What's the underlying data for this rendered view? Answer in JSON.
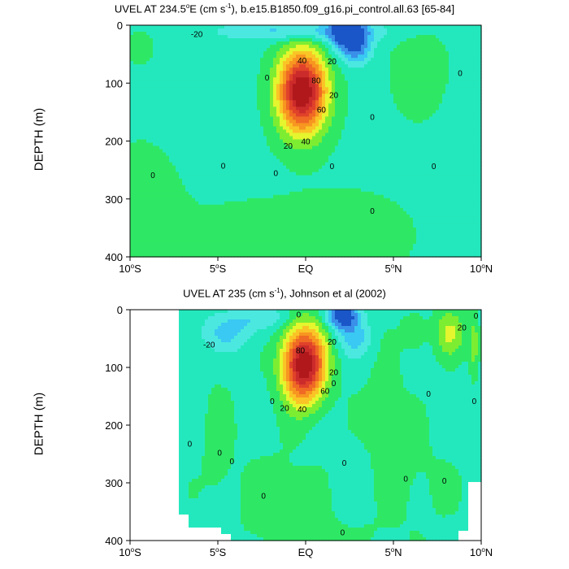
{
  "chart_data": [
    {
      "type": "contour",
      "title": "UVEL AT 234.5°E (cm s⁻¹), b.e15.B1850.f09_g16.pi_control.all.63 [65-84]",
      "title_parts": {
        "pre": "UVEL AT 234.5",
        "sup1": "o",
        "mid": "E (cm s",
        "sup2": "-1",
        "post": "), b.e15.B1850.f09_g16.pi_control.all.63 [65-84]"
      },
      "ylabel": "DEPTH (m)",
      "xlabel": "",
      "xlim": [
        -10,
        10
      ],
      "ylim": [
        400,
        0
      ],
      "x_ticks": [
        {
          "value": -10,
          "num": "10",
          "sup": "o",
          "suffix": "S"
        },
        {
          "value": -5,
          "num": "5",
          "sup": "o",
          "suffix": "S"
        },
        {
          "value": 0,
          "num": "EQ",
          "sup": "",
          "suffix": ""
        },
        {
          "value": 5,
          "num": "5",
          "sup": "o",
          "suffix": "N"
        },
        {
          "value": 10,
          "num": "10",
          "sup": "o",
          "suffix": "N"
        }
      ],
      "y_ticks": [
        0,
        100,
        200,
        300,
        400
      ],
      "contour_labels": [
        {
          "text": "-20",
          "x": -6.2,
          "y": 15
        },
        {
          "text": "40",
          "x": -0.2,
          "y": 60
        },
        {
          "text": "80",
          "x": 0.6,
          "y": 95
        },
        {
          "text": "20",
          "x": 1.5,
          "y": 62
        },
        {
          "text": "20",
          "x": 1.6,
          "y": 120
        },
        {
          "text": "60",
          "x": 0.9,
          "y": 145
        },
        {
          "text": "40",
          "x": 0.0,
          "y": 200
        },
        {
          "text": "20",
          "x": -1.0,
          "y": 208
        },
        {
          "text": "0",
          "x": -2.2,
          "y": 90
        },
        {
          "text": "0",
          "x": 3.8,
          "y": 158
        },
        {
          "text": "0",
          "x": 8.8,
          "y": 82
        },
        {
          "text": "0",
          "x": -8.7,
          "y": 258
        },
        {
          "text": "0",
          "x": -4.7,
          "y": 242
        },
        {
          "text": "0",
          "x": -1.7,
          "y": 255
        },
        {
          "text": "0",
          "x": 1.5,
          "y": 243
        },
        {
          "text": "0",
          "x": 3.8,
          "y": 320
        },
        {
          "text": "0",
          "x": 7.3,
          "y": 243
        }
      ]
    },
    {
      "type": "contour",
      "title": "UVEL AT 235 (cm s⁻¹), Johnson et al (2002)",
      "title_parts": {
        "pre": "UVEL AT 235 (cm s",
        "sup1": "-1",
        "mid": "), Johnson et al (2002)",
        "sup2": "",
        "post": ""
      },
      "ylabel": "DEPTH (m)",
      "xlabel": "",
      "xlim": [
        -10,
        10
      ],
      "ylim": [
        400,
        0
      ],
      "x_ticks": [
        {
          "value": -10,
          "num": "10",
          "sup": "o",
          "suffix": "S"
        },
        {
          "value": -5,
          "num": "5",
          "sup": "o",
          "suffix": "S"
        },
        {
          "value": 0,
          "num": "EQ",
          "sup": "",
          "suffix": ""
        },
        {
          "value": 5,
          "num": "5",
          "sup": "o",
          "suffix": "N"
        },
        {
          "value": 10,
          "num": "10",
          "sup": "o",
          "suffix": "N"
        }
      ],
      "y_ticks": [
        0,
        100,
        200,
        300,
        400
      ],
      "contour_labels": [
        {
          "text": "-20",
          "x": -5.5,
          "y": 60
        },
        {
          "text": "0",
          "x": -0.4,
          "y": 8
        },
        {
          "text": "20",
          "x": 1.5,
          "y": 55
        },
        {
          "text": "80",
          "x": -0.3,
          "y": 70
        },
        {
          "text": "20",
          "x": 1.6,
          "y": 108
        },
        {
          "text": "60",
          "x": 1.1,
          "y": 140
        },
        {
          "text": "40",
          "x": -0.2,
          "y": 172
        },
        {
          "text": "20",
          "x": -1.2,
          "y": 170
        },
        {
          "text": "0",
          "x": 1.6,
          "y": 127
        },
        {
          "text": "0",
          "x": -1.9,
          "y": 158
        },
        {
          "text": "0",
          "x": 7.0,
          "y": 145
        },
        {
          "text": "0",
          "x": 9.6,
          "y": 158
        },
        {
          "text": "20",
          "x": 8.9,
          "y": 30
        },
        {
          "text": "0",
          "x": 9.7,
          "y": 10
        },
        {
          "text": "0",
          "x": -6.6,
          "y": 232
        },
        {
          "text": "0",
          "x": -4.9,
          "y": 247
        },
        {
          "text": "0",
          "x": -4.2,
          "y": 262
        },
        {
          "text": "0",
          "x": -2.4,
          "y": 322
        },
        {
          "text": "0",
          "x": 5.7,
          "y": 292
        },
        {
          "text": "0",
          "x": 7.9,
          "y": 296
        },
        {
          "text": "0",
          "x": 2.2,
          "y": 265
        },
        {
          "text": "0",
          "x": 2.1,
          "y": 385
        }
      ]
    }
  ],
  "colors": {
    "neg40": "#1a56c8",
    "neg30": "#3a8fe8",
    "neg20": "#39c9f2",
    "neg10": "#4be8e0",
    "zero": "#24e8bd",
    "pos10": "#2ee865",
    "pos20": "#7ded32",
    "pos30": "#e5f52e",
    "pos40": "#fac426",
    "pos50": "#f79620",
    "pos60": "#ef6a24",
    "pos70": "#e0422a",
    "pos80": "#cc2b2b",
    "pos90": "#b0181c"
  }
}
